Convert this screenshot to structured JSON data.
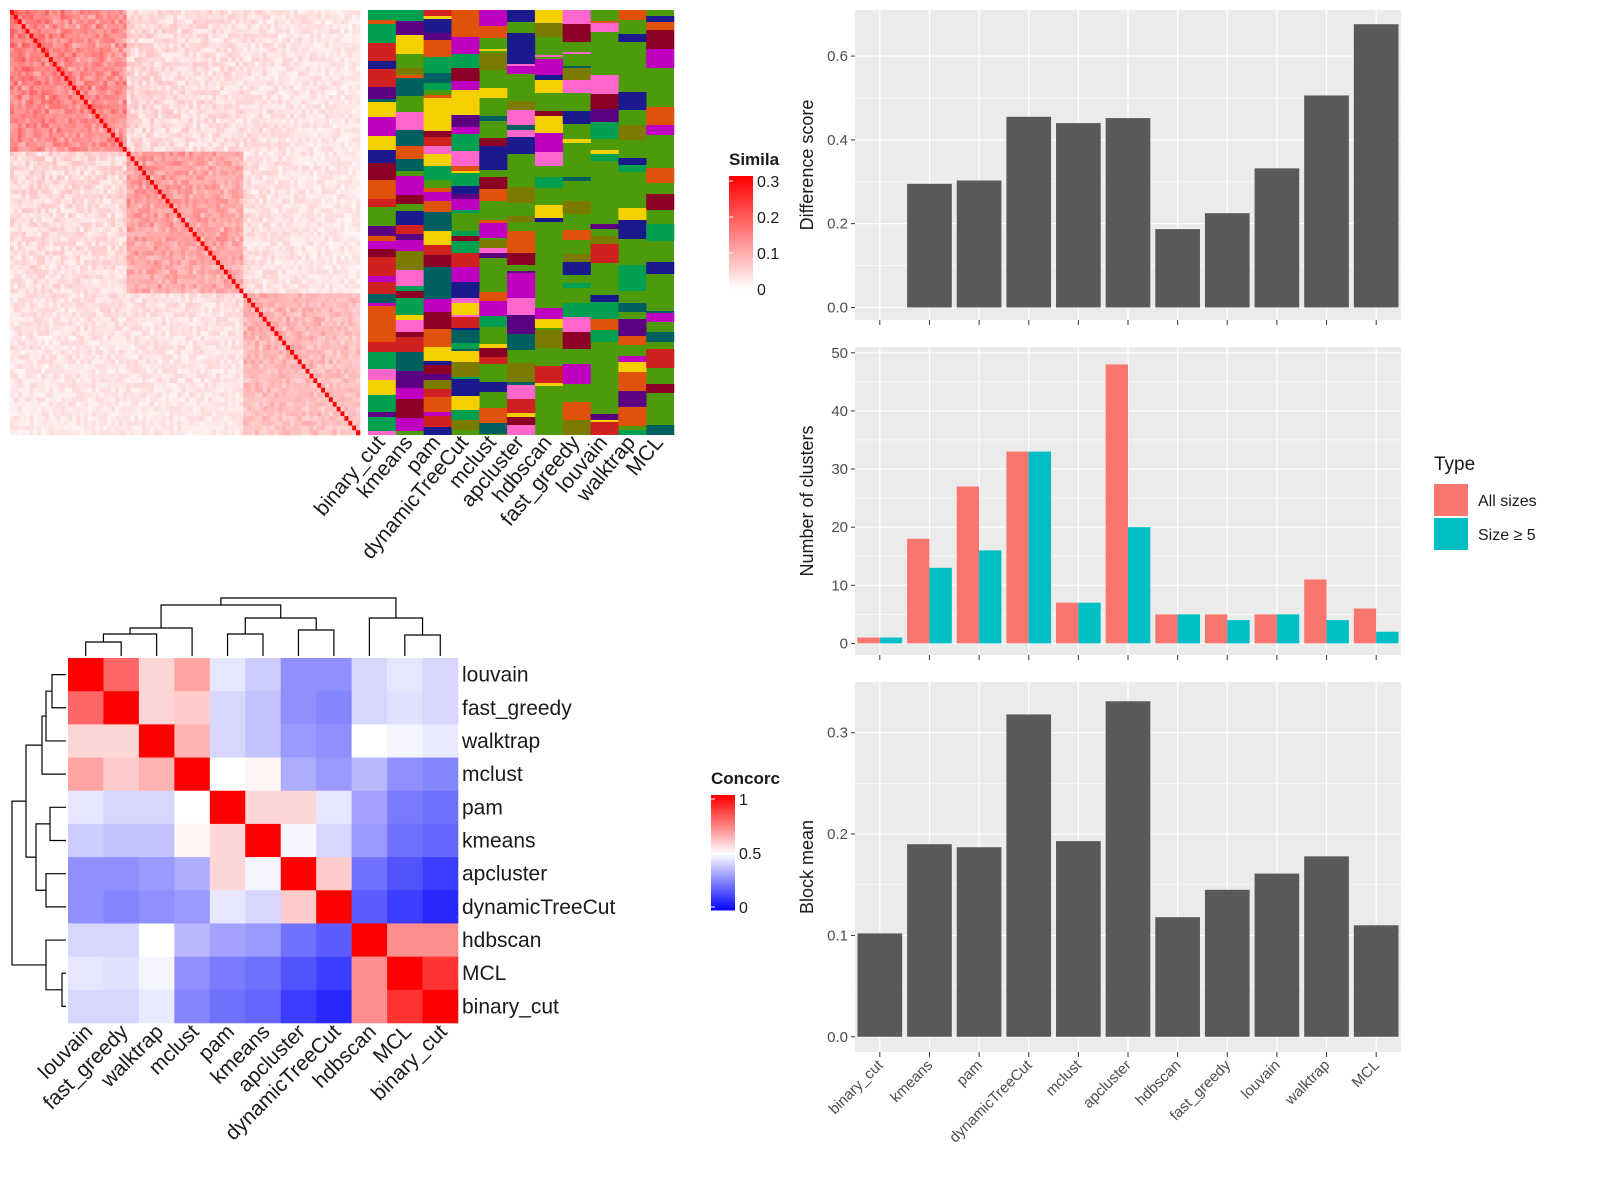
{
  "methods_order": [
    "binary_cut",
    "kmeans",
    "pam",
    "dynamicTreeCut",
    "mclust",
    "apcluster",
    "hdbscan",
    "fast_greedy",
    "louvain",
    "walktrap",
    "MCL"
  ],
  "colors": {
    "panel_bg": "#ebebeb",
    "grid": "#ffffff",
    "bar_dark": "#595959",
    "all_sizes": "#F8766D",
    "size_ge5": "#00BFC4",
    "heat_red": "#ff0000",
    "heat_blue": "#0000ff",
    "green_bg": "#4d9a0a"
  },
  "top_left": {
    "similarity_legend_title": "Simila",
    "similarity_ticks": [
      "0.3",
      "0.2",
      "0.1",
      "0"
    ],
    "method_labels": [
      "binary_cut",
      "kmeans",
      "pam",
      "dynamicTreeCut",
      "mclust",
      "apcluster",
      "hdbscan",
      "fast_greedy",
      "louvain",
      "walktrap",
      "MCL"
    ],
    "annotation_palette": [
      "#4d9a0a",
      "#c000c0",
      "#f5d000",
      "#e0520a",
      "#1a1a8c",
      "#8b0024",
      "#5a0080",
      "#00a050",
      "#ff66cc",
      "#7b7b00",
      "#006060",
      "#d02020"
    ]
  },
  "concordance": {
    "legend_title": "Concorc",
    "legend_ticks": [
      "1",
      "0.5",
      "0"
    ],
    "order": [
      "louvain",
      "fast_greedy",
      "walktrap",
      "mclust",
      "pam",
      "kmeans",
      "apcluster",
      "dynamicTreeCut",
      "hdbscan",
      "MCL",
      "binary_cut"
    ],
    "matrix": [
      [
        1.0,
        0.8,
        0.58,
        0.68,
        0.45,
        0.4,
        0.28,
        0.28,
        0.42,
        0.45,
        0.42
      ],
      [
        0.8,
        1.0,
        0.58,
        0.6,
        0.42,
        0.38,
        0.28,
        0.26,
        0.42,
        0.44,
        0.42
      ],
      [
        0.58,
        0.58,
        1.0,
        0.65,
        0.42,
        0.38,
        0.3,
        0.28,
        0.5,
        0.48,
        0.46
      ],
      [
        0.68,
        0.6,
        0.65,
        1.0,
        0.5,
        0.52,
        0.34,
        0.3,
        0.36,
        0.28,
        0.26
      ],
      [
        0.45,
        0.42,
        0.42,
        0.5,
        1.0,
        0.58,
        0.58,
        0.45,
        0.32,
        0.24,
        0.22
      ],
      [
        0.4,
        0.38,
        0.38,
        0.52,
        0.58,
        1.0,
        0.48,
        0.42,
        0.3,
        0.22,
        0.2
      ],
      [
        0.28,
        0.28,
        0.3,
        0.34,
        0.58,
        0.48,
        1.0,
        0.6,
        0.22,
        0.16,
        0.12
      ],
      [
        0.28,
        0.26,
        0.28,
        0.3,
        0.45,
        0.42,
        0.6,
        1.0,
        0.18,
        0.12,
        0.08
      ],
      [
        0.42,
        0.42,
        0.5,
        0.36,
        0.32,
        0.3,
        0.22,
        0.18,
        1.0,
        0.72,
        0.72
      ],
      [
        0.45,
        0.44,
        0.48,
        0.28,
        0.24,
        0.22,
        0.16,
        0.12,
        0.72,
        1.0,
        0.9
      ],
      [
        0.42,
        0.42,
        0.46,
        0.26,
        0.22,
        0.2,
        0.12,
        0.08,
        0.72,
        0.9,
        1.0
      ]
    ]
  },
  "chart_data": [
    {
      "type": "bar",
      "categories": [
        "binary_cut",
        "kmeans",
        "pam",
        "dynamicTreeCut",
        "mclust",
        "apcluster",
        "hdbscan",
        "fast_greedy",
        "louvain",
        "walktrap",
        "MCL"
      ],
      "values": [
        0.0,
        0.295,
        0.303,
        0.455,
        0.44,
        0.452,
        0.187,
        0.225,
        0.332,
        0.506,
        0.676
      ],
      "ylabel": "Difference score",
      "ylim": [
        -0.03,
        0.71
      ],
      "yticks": [
        "0.0",
        "0.2",
        "0.4",
        "0.6"
      ],
      "grid": true
    },
    {
      "type": "bar",
      "categories": [
        "binary_cut",
        "kmeans",
        "pam",
        "dynamicTreeCut",
        "mclust",
        "apcluster",
        "hdbscan",
        "fast_greedy",
        "louvain",
        "walktrap",
        "MCL"
      ],
      "series": [
        {
          "name": "All sizes",
          "values": [
            1,
            18,
            27,
            33,
            7,
            48,
            5,
            5,
            5,
            11,
            6
          ]
        },
        {
          "name": "Size ≥ 5",
          "values": [
            1,
            13,
            16,
            33,
            7,
            20,
            5,
            4,
            5,
            4,
            2
          ]
        }
      ],
      "ylabel": "Number of clusters",
      "ylim": [
        -2,
        51
      ],
      "yticks": [
        "0",
        "10",
        "20",
        "30",
        "40",
        "50"
      ],
      "legend_title": "Type",
      "legend_position": "right",
      "grid": true
    },
    {
      "type": "bar",
      "categories": [
        "binary_cut",
        "kmeans",
        "pam",
        "dynamicTreeCut",
        "mclust",
        "apcluster",
        "hdbscan",
        "fast_greedy",
        "louvain",
        "walktrap",
        "MCL"
      ],
      "values": [
        0.102,
        0.19,
        0.187,
        0.318,
        0.193,
        0.331,
        0.118,
        0.145,
        0.161,
        0.178,
        0.11
      ],
      "ylabel": "Block mean",
      "ylim": [
        -0.015,
        0.35
      ],
      "yticks": [
        "0.0",
        "0.1",
        "0.2",
        "0.3"
      ],
      "grid": true
    }
  ]
}
